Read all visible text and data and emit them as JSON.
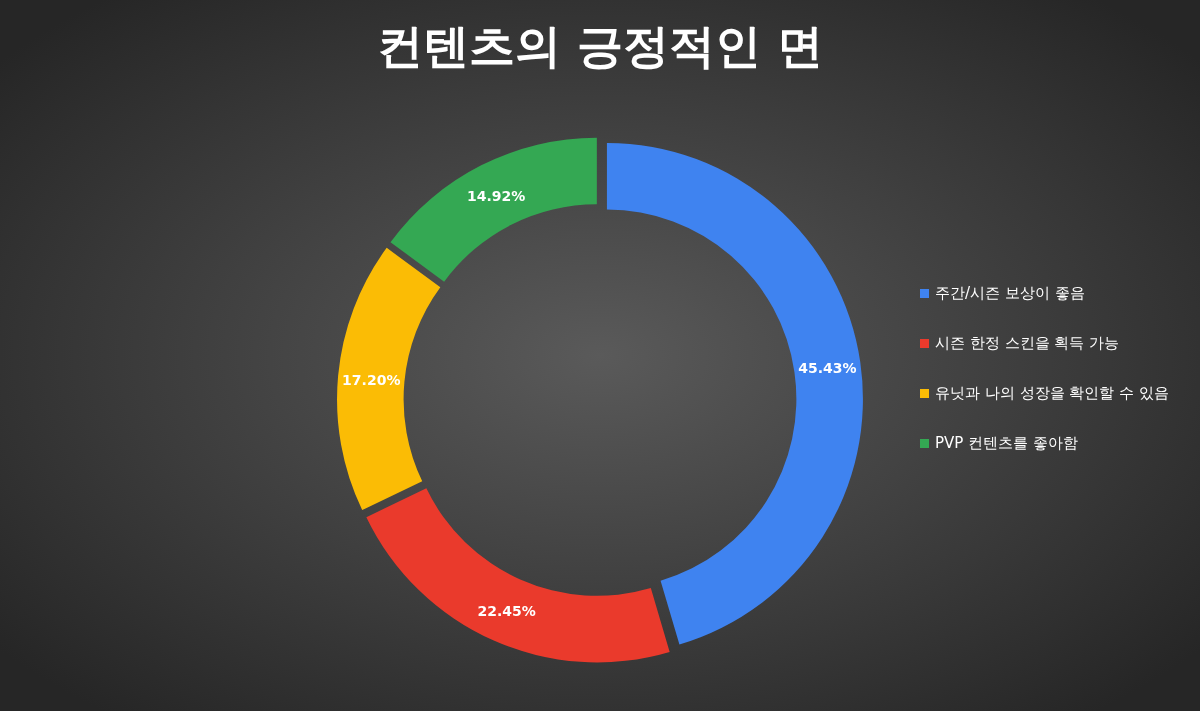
{
  "chart_data": {
    "type": "donut",
    "title": "컨텐츠의 긍정적인 면",
    "categories": [
      "주간/시즌 보상이 좋음",
      "시즌 한정 스킨을 획득 가능",
      "유닛과 나의 성장을 확인할 수 있음",
      "PVP 컨텐츠를 좋아함"
    ],
    "values": [
      45.43,
      22.45,
      17.2,
      14.92
    ],
    "colors": [
      "#3f83f0",
      "#ea3a2c",
      "#fbbc05",
      "#34a853"
    ],
    "value_labels": [
      "45.43%",
      "22.45%",
      "17.20%",
      "14.92%"
    ],
    "legend": "right"
  }
}
